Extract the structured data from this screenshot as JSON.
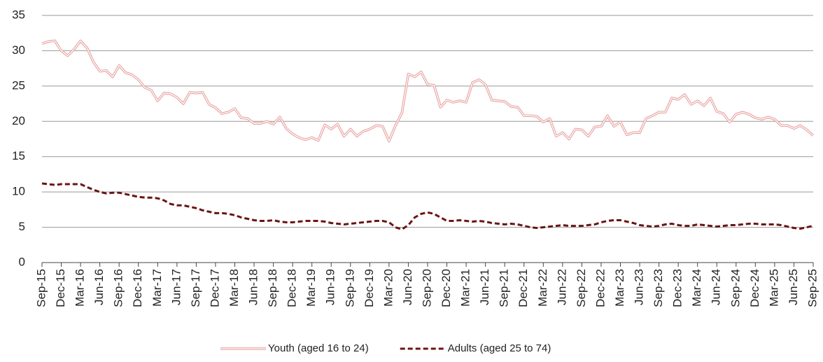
{
  "chart_data": {
    "type": "line",
    "categories": [
      "Sep-15",
      null,
      null,
      "Dec-15",
      null,
      null,
      "Mar-16",
      null,
      null,
      "Jun-16",
      null,
      null,
      "Sep-16",
      null,
      null,
      "Dec-16",
      null,
      null,
      "Mar-17",
      null,
      null,
      "Jun-17",
      null,
      null,
      "Sep-17",
      null,
      null,
      "Dec-17",
      null,
      null,
      "Mar-18",
      null,
      null,
      "Jun-18",
      null,
      null,
      "Sep-18",
      null,
      null,
      "Dec-18",
      null,
      null,
      "Mar-19",
      null,
      null,
      "Jun-19",
      null,
      null,
      "Sep-19",
      null,
      null,
      "Dec-19",
      null,
      null,
      "Mar-20",
      null,
      null,
      "Jun-20",
      null,
      null,
      "Sep-20",
      null,
      null,
      "Dec-20",
      null,
      null,
      "Mar-21",
      null,
      null,
      "Jun-21",
      null,
      null,
      "Sep-21",
      null,
      null,
      "Dec-21",
      null,
      null,
      "Mar-22",
      null,
      null,
      "Jun-22",
      null,
      null,
      "Sep-22",
      null,
      null,
      "Dec-22",
      null,
      null,
      "Mar-23",
      null,
      null,
      "Jun-23",
      null,
      null,
      "Sep-23",
      null,
      null,
      "Dec-23",
      null,
      null,
      "Mar-24",
      null,
      null,
      "Jun-24",
      null,
      null,
      "Sep-24",
      null,
      null,
      "Dec-24",
      null,
      null,
      "Mar-25",
      null,
      null,
      "Jun-25",
      null,
      null,
      "Sep-25"
    ],
    "series": [
      {
        "name": "Youth (aged 16 to 24)",
        "color": "#e8a0a0",
        "line_style": "double",
        "values": [
          31.0,
          31.3,
          31.4,
          30.0,
          29.3,
          30.2,
          31.4,
          30.4,
          28.4,
          27.1,
          27.2,
          26.3,
          27.9,
          26.9,
          26.6,
          25.9,
          24.8,
          24.4,
          22.9,
          24.0,
          23.9,
          23.4,
          22.5,
          24.1,
          24.0,
          24.1,
          22.4,
          21.9,
          21.1,
          21.3,
          21.8,
          20.5,
          20.4,
          19.7,
          19.7,
          20.0,
          19.6,
          20.6,
          19.0,
          18.2,
          17.7,
          17.4,
          17.7,
          17.3,
          19.5,
          18.9,
          19.6,
          17.9,
          18.9,
          17.9,
          18.6,
          18.9,
          19.4,
          19.3,
          17.2,
          19.4,
          21.2,
          26.7,
          26.3,
          27.0,
          25.2,
          25.1,
          22.0,
          23.0,
          22.7,
          22.9,
          22.7,
          25.5,
          25.9,
          25.2,
          23.0,
          22.9,
          22.8,
          22.1,
          22.0,
          20.8,
          20.8,
          20.7,
          19.9,
          20.4,
          17.9,
          18.4,
          17.5,
          18.9,
          18.8,
          17.9,
          19.2,
          19.3,
          20.8,
          19.3,
          19.9,
          18.1,
          18.4,
          18.4,
          20.4,
          20.8,
          21.3,
          21.3,
          23.3,
          23.1,
          23.8,
          22.4,
          22.9,
          22.2,
          23.3,
          21.4,
          21.1,
          19.9,
          21.0,
          21.3,
          21.0,
          20.5,
          20.3,
          20.6,
          20.3,
          19.4,
          19.4,
          19.0,
          19.4,
          18.8,
          18.0
        ]
      },
      {
        "name": "Adults (aged 25 to 74)",
        "color": "#6b1414",
        "line_style": "dashed",
        "values": [
          11.2,
          11.1,
          11.0,
          11.1,
          11.1,
          11.1,
          11.1,
          10.7,
          10.3,
          10.0,
          9.8,
          9.9,
          9.9,
          9.7,
          9.5,
          9.3,
          9.2,
          9.2,
          9.1,
          8.8,
          8.3,
          8.1,
          8.1,
          7.9,
          7.7,
          7.4,
          7.2,
          7.0,
          7.0,
          6.9,
          6.7,
          6.4,
          6.2,
          6.0,
          5.9,
          5.9,
          6.0,
          5.8,
          5.7,
          5.7,
          5.8,
          5.9,
          5.9,
          5.9,
          5.8,
          5.6,
          5.5,
          5.4,
          5.5,
          5.6,
          5.7,
          5.8,
          5.9,
          5.9,
          5.7,
          5.0,
          4.7,
          5.3,
          6.4,
          6.9,
          7.1,
          6.9,
          6.4,
          5.9,
          5.9,
          6.0,
          5.9,
          5.8,
          5.9,
          5.8,
          5.6,
          5.5,
          5.4,
          5.5,
          5.4,
          5.2,
          5.0,
          4.9,
          5.0,
          5.1,
          5.2,
          5.3,
          5.2,
          5.2,
          5.2,
          5.3,
          5.4,
          5.7,
          5.9,
          6.0,
          6.0,
          5.8,
          5.6,
          5.3,
          5.2,
          5.1,
          5.2,
          5.4,
          5.5,
          5.3,
          5.2,
          5.2,
          5.4,
          5.3,
          5.2,
          5.1,
          5.2,
          5.3,
          5.3,
          5.4,
          5.5,
          5.5,
          5.4,
          5.4,
          5.4,
          5.3,
          5.1,
          4.9,
          4.8,
          5.0,
          5.2
        ]
      }
    ],
    "ylim": [
      0,
      35
    ],
    "yticks": [
      0,
      5,
      10,
      15,
      20,
      25,
      30,
      35
    ],
    "grid": true,
    "legend": "bottom"
  }
}
